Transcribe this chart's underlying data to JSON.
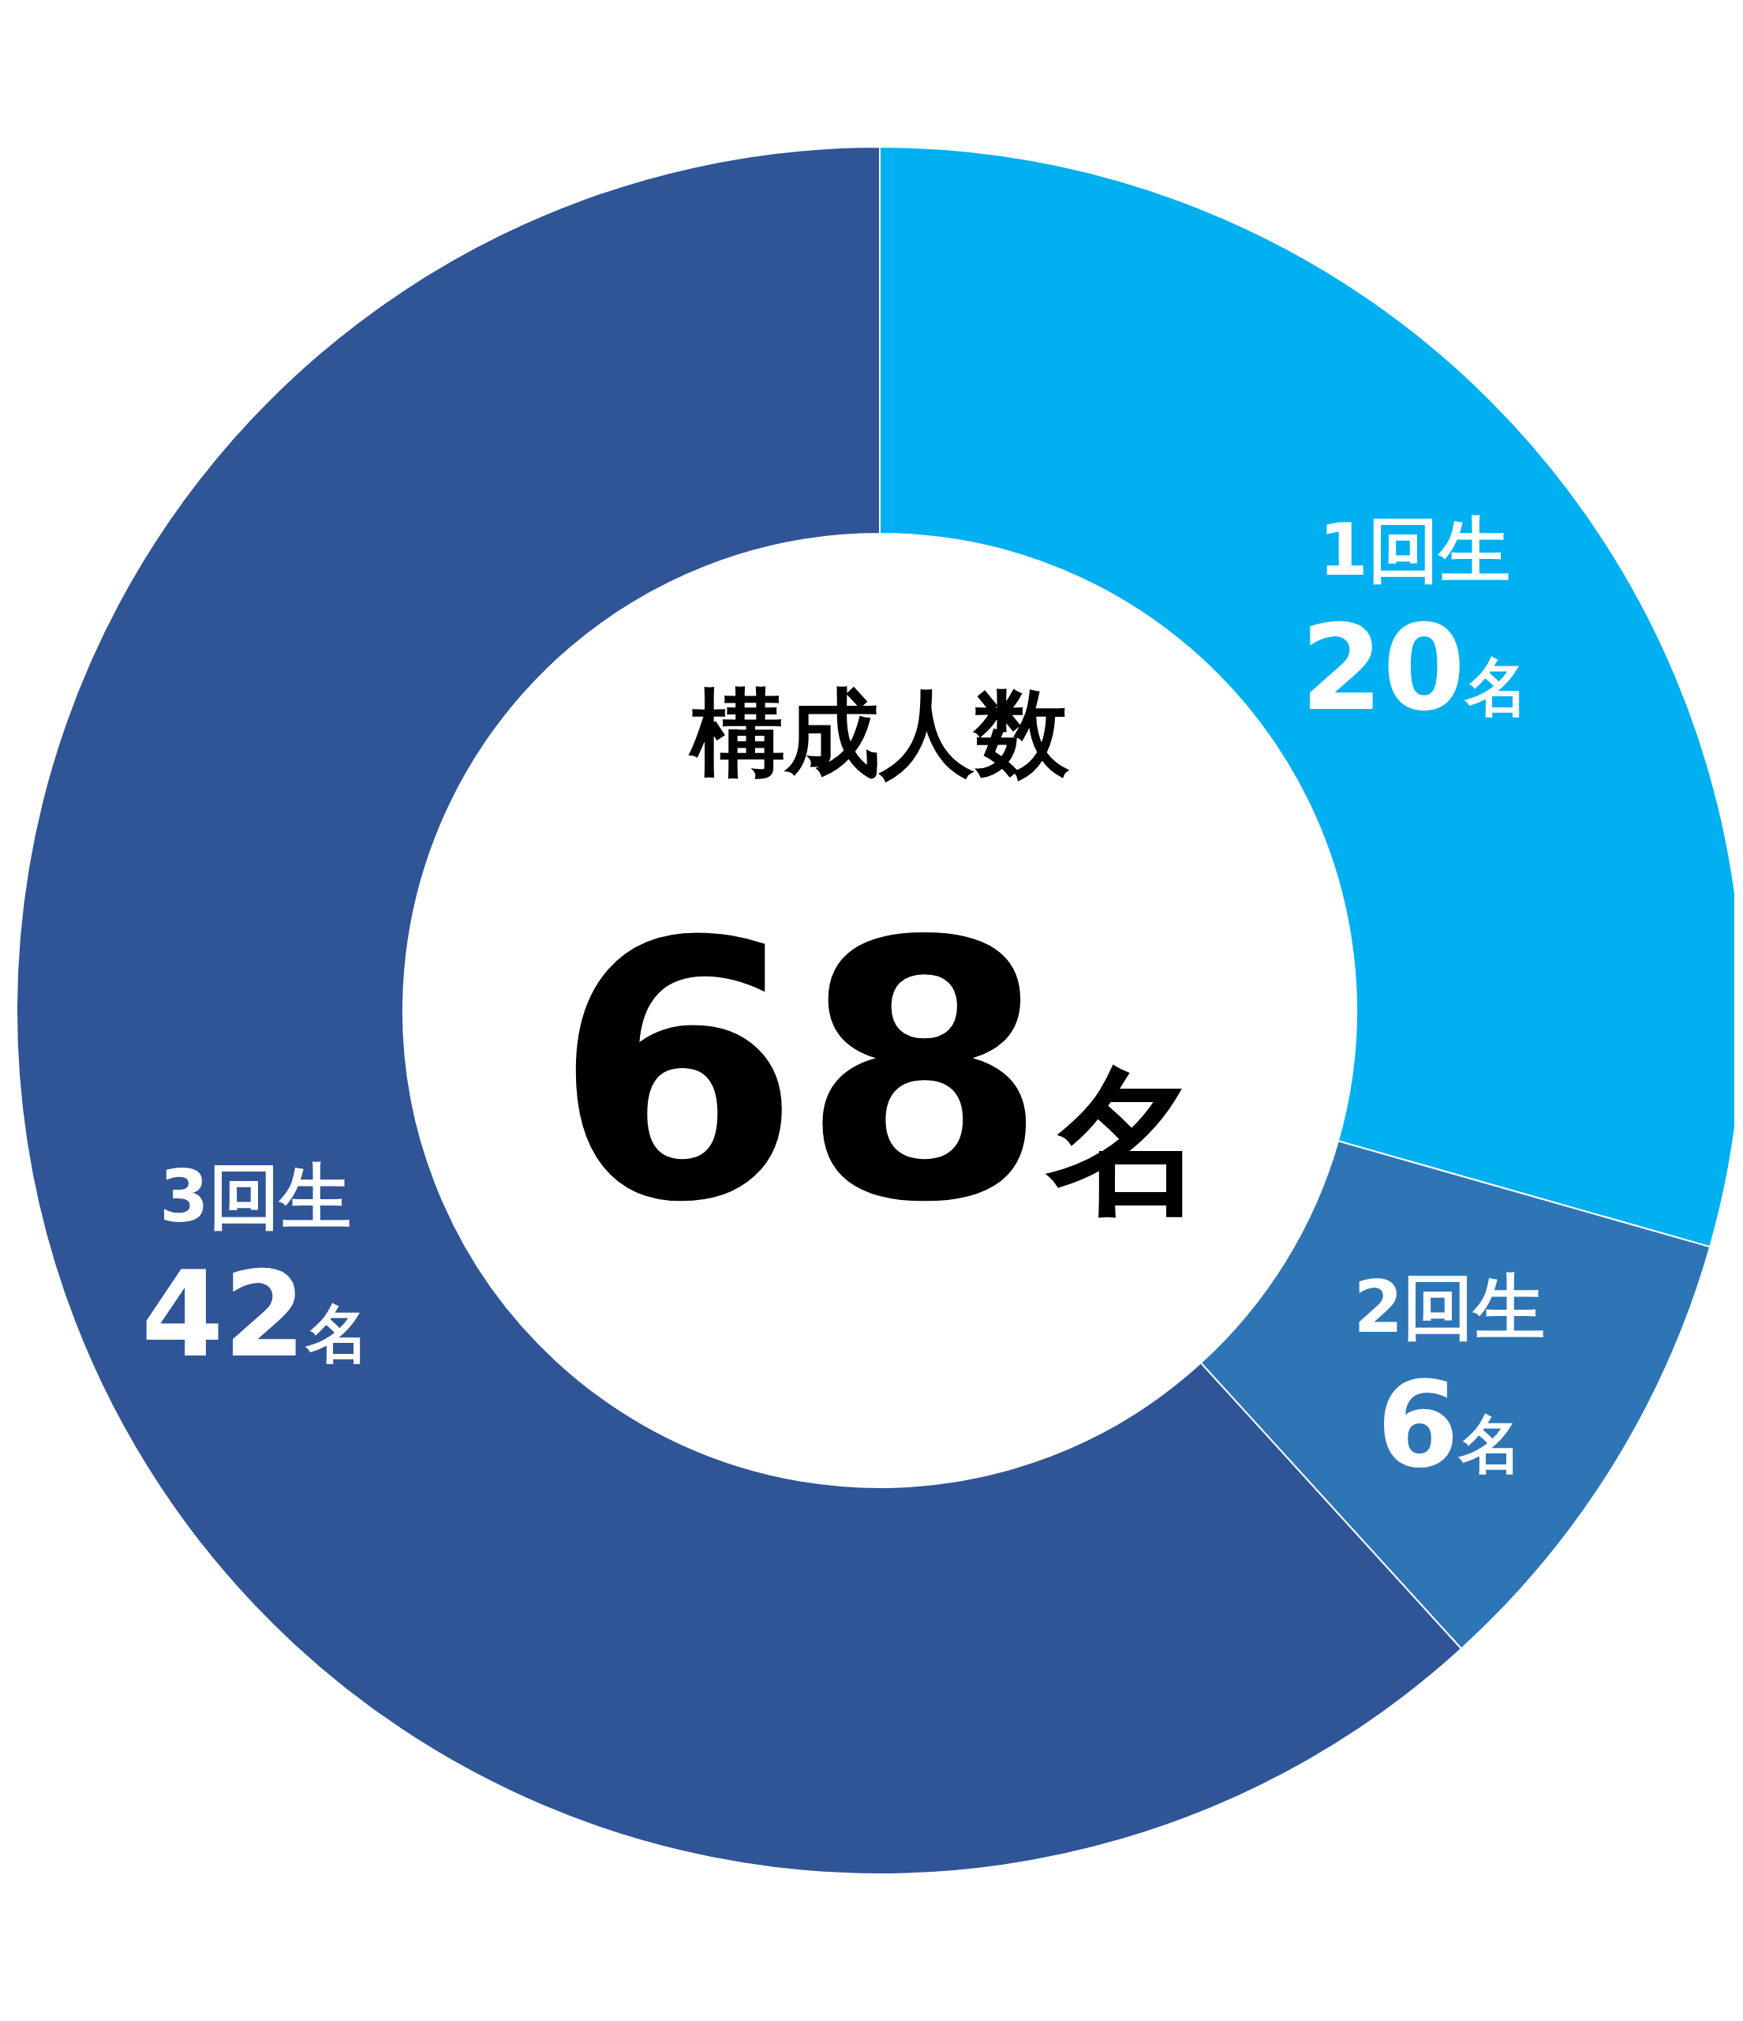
{
  "chart_data": {
    "type": "donut",
    "title": "構成人数",
    "subtitle": "68名",
    "categories": [
      "1回生",
      "2回生",
      "3回生"
    ],
    "values": [
      20,
      6,
      42
    ],
    "value_labels": [
      "20名",
      "6名",
      "42名"
    ],
    "colors": [
      "#00b0f0",
      "#2e75b6",
      "#2f5597"
    ]
  }
}
